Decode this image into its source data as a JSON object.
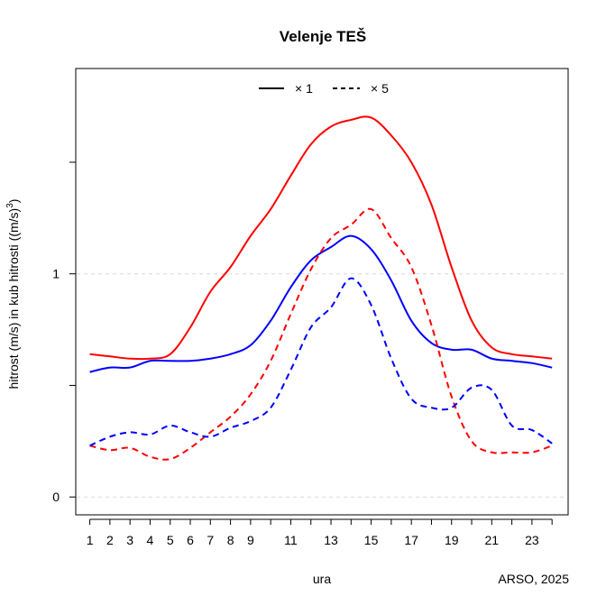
{
  "chart_data": {
    "type": "line",
    "title": "Velenje TEŠ",
    "xlabel": "ura",
    "ylabel": "hitrost (m/s) in kub hitrosti ((m/s)³)",
    "ylabel_main": "hitrost (m/s) in kub hitrosti ((m/s)",
    "ylabel_sup": "3",
    "ylabel_end": ")",
    "credit": "ARSO, 2025",
    "x_ticks": [
      1,
      2,
      3,
      4,
      5,
      6,
      7,
      8,
      9,
      10,
      11,
      12,
      13,
      14,
      15,
      16,
      17,
      18,
      19,
      20,
      21,
      22,
      23,
      24
    ],
    "x_tick_labels": [
      "1",
      "2",
      "3",
      "4",
      "5",
      "6",
      "7",
      "8",
      "9",
      "11",
      "13",
      "15",
      "17",
      "19",
      "21",
      "23"
    ],
    "x_tick_label_positions": [
      1,
      2,
      3,
      4,
      5,
      6,
      7,
      8,
      9,
      11,
      13,
      15,
      17,
      19,
      21,
      23
    ],
    "y_ticks": [
      0,
      0.5,
      1,
      1.5
    ],
    "y_tick_labels": [
      {
        "value": 0,
        "label": "0"
      },
      {
        "value": 1,
        "label": "1"
      }
    ],
    "xlim": [
      0.3,
      24.8
    ],
    "ylim": [
      -0.08,
      1.92
    ],
    "grid": "dashed horizontal at labeled ticks",
    "legend_position": "top",
    "legend": [
      {
        "label": "× 1",
        "style": "solid"
      },
      {
        "label": "× 5",
        "style": "dashed"
      }
    ],
    "x": [
      1,
      2,
      3,
      4,
      5,
      6,
      7,
      8,
      9,
      10,
      11,
      12,
      13,
      14,
      15,
      16,
      17,
      18,
      19,
      20,
      21,
      22,
      23,
      24
    ],
    "series": [
      {
        "color": "#ff0000",
        "style": "solid",
        "width": 2,
        "values": [
          0.64,
          0.63,
          0.62,
          0.62,
          0.64,
          0.76,
          0.92,
          1.03,
          1.17,
          1.29,
          1.44,
          1.58,
          1.66,
          1.69,
          1.7,
          1.62,
          1.5,
          1.31,
          1.03,
          0.79,
          0.67,
          0.64,
          0.63,
          0.62
        ]
      },
      {
        "color": "#0000ff",
        "style": "solid",
        "width": 2,
        "values": [
          0.56,
          0.58,
          0.58,
          0.61,
          0.61,
          0.61,
          0.62,
          0.64,
          0.68,
          0.79,
          0.94,
          1.06,
          1.12,
          1.17,
          1.11,
          0.97,
          0.79,
          0.69,
          0.66,
          0.66,
          0.62,
          0.61,
          0.6,
          0.58
        ]
      },
      {
        "color": "#ff0000",
        "style": "dashed",
        "width": 2,
        "values": [
          0.23,
          0.21,
          0.22,
          0.18,
          0.17,
          0.22,
          0.29,
          0.36,
          0.46,
          0.61,
          0.82,
          1.02,
          1.16,
          1.22,
          1.29,
          1.16,
          1.03,
          0.77,
          0.45,
          0.25,
          0.2,
          0.2,
          0.2,
          0.23
        ]
      },
      {
        "color": "#0000ff",
        "style": "dashed",
        "width": 2,
        "values": [
          0.23,
          0.27,
          0.29,
          0.28,
          0.32,
          0.29,
          0.27,
          0.31,
          0.34,
          0.4,
          0.57,
          0.76,
          0.85,
          0.98,
          0.86,
          0.62,
          0.44,
          0.4,
          0.4,
          0.49,
          0.48,
          0.32,
          0.3,
          0.24
        ]
      }
    ]
  }
}
